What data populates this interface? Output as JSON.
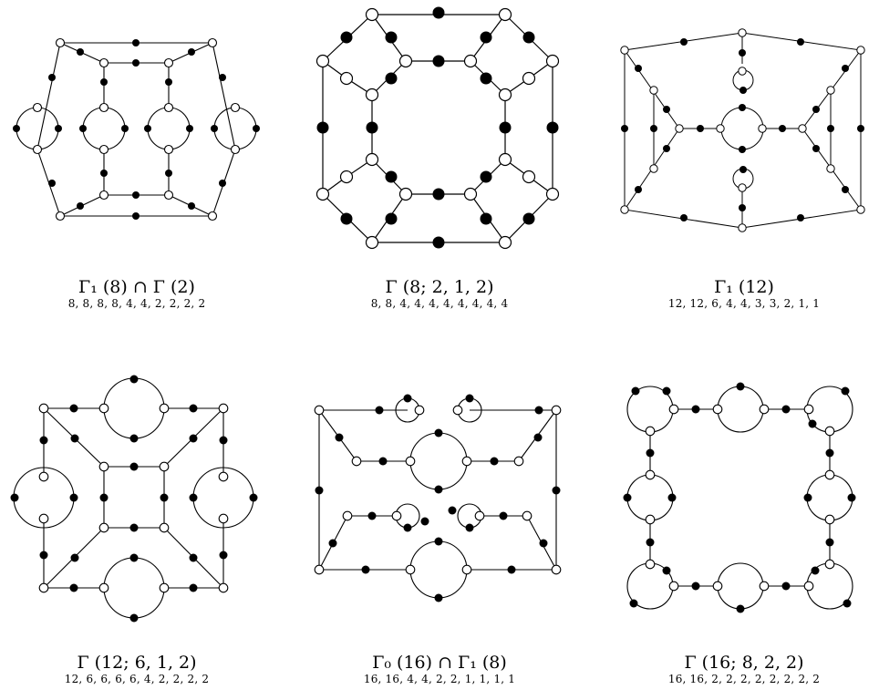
{
  "graphs": [
    {
      "title": "Γ₁ (8) ∩ Γ (2)",
      "sequence": "8, 8, 8, 8, 4, 4, 2, 2, 2, 2"
    },
    {
      "title": "Γ (8; 2, 1, 2)",
      "sequence": "8, 8, 4, 4, 4, 4, 4, 4, 4, 4"
    },
    {
      "title": "Γ₁ (12)",
      "sequence": "12, 12, 6, 4, 4, 3, 3, 2, 1, 1"
    },
    {
      "title": "Γ (12; 6, 1, 2)",
      "sequence": "12, 6, 6, 6, 6, 4, 2, 2, 2, 2"
    },
    {
      "title": "Γ₀ (16) ∩ Γ₁ (8)",
      "sequence": "16, 16, 4, 4, 2, 2, 1, 1, 1, 1"
    },
    {
      "title": "Γ (16; 8, 2, 2)",
      "sequence": "16, 16, 2, 2, 2, 2, 2, 2, 2, 2"
    }
  ]
}
